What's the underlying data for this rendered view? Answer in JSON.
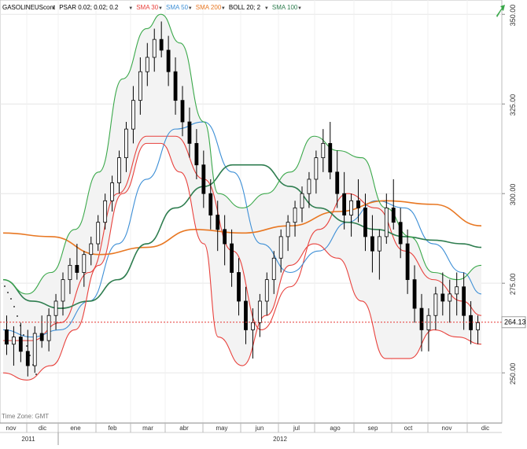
{
  "toolbar": {
    "symbol": "GASOLINEUScont",
    "indicators": [
      "PSAR 0.02; 0.02; 0.2",
      "SMA 30",
      "SMA 50",
      "SMA 200",
      "BOLL 20; 2",
      "SMA 100"
    ],
    "colors": [
      "#000000",
      "#e8413c",
      "#3d8fd6",
      "#e87722",
      "#000000",
      "#2e7d4f"
    ],
    "dropdown_glyph": "▼"
  },
  "timezone_label": "Time Zone: GMT",
  "price_label": "264.13",
  "chart_data": {
    "type": "line",
    "title": "",
    "y_axis": {
      "ylim": [
        236,
        354
      ],
      "ticks": [
        250,
        275,
        300,
        325,
        350
      ],
      "tick_labels": [
        "250.00",
        "275.00",
        "300.00",
        "325.00",
        "350.00"
      ],
      "position": "right"
    },
    "x_axis": {
      "months": [
        "nov",
        "dic",
        "ene",
        "feb",
        "mar",
        "abr",
        "may",
        "jun",
        "jul",
        "ago",
        "sep",
        "oct",
        "nov",
        "dic"
      ],
      "years": [
        "2011",
        "2012"
      ]
    },
    "last_price": 264.13,
    "grid": true,
    "candles_approx": [
      [
        262,
        266,
        255,
        258
      ],
      [
        258,
        263,
        252,
        260
      ],
      [
        260,
        264,
        253,
        256
      ],
      [
        256,
        262,
        249,
        252
      ],
      [
        252,
        263,
        250,
        261
      ],
      [
        261,
        266,
        257,
        259
      ],
      [
        259,
        268,
        256,
        266
      ],
      [
        266,
        272,
        262,
        270
      ],
      [
        270,
        278,
        266,
        276
      ],
      [
        276,
        282,
        272,
        280
      ],
      [
        280,
        286,
        276,
        278
      ],
      [
        278,
        284,
        274,
        283
      ],
      [
        283,
        288,
        280,
        286
      ],
      [
        286,
        294,
        284,
        292
      ],
      [
        292,
        300,
        290,
        298
      ],
      [
        298,
        305,
        295,
        303
      ],
      [
        303,
        312,
        300,
        310
      ],
      [
        310,
        320,
        306,
        318
      ],
      [
        318,
        330,
        314,
        326
      ],
      [
        326,
        338,
        322,
        334
      ],
      [
        334,
        342,
        330,
        338
      ],
      [
        338,
        346,
        334,
        343
      ],
      [
        343,
        348,
        338,
        340
      ],
      [
        340,
        344,
        330,
        334
      ],
      [
        334,
        338,
        322,
        326
      ],
      [
        326,
        330,
        316,
        320
      ],
      [
        320,
        324,
        310,
        314
      ],
      [
        314,
        318,
        304,
        308
      ],
      [
        308,
        312,
        296,
        300
      ],
      [
        300,
        304,
        290,
        294
      ],
      [
        294,
        298,
        284,
        290
      ],
      [
        290,
        294,
        280,
        286
      ],
      [
        286,
        290,
        274,
        278
      ],
      [
        278,
        282,
        266,
        270
      ],
      [
        270,
        274,
        258,
        262
      ],
      [
        262,
        268,
        254,
        264
      ],
      [
        264,
        272,
        260,
        270
      ],
      [
        270,
        278,
        266,
        276
      ],
      [
        276,
        284,
        272,
        282
      ],
      [
        282,
        290,
        278,
        288
      ],
      [
        288,
        294,
        284,
        292
      ],
      [
        292,
        298,
        288,
        296
      ],
      [
        296,
        302,
        292,
        300
      ],
      [
        300,
        306,
        296,
        304
      ],
      [
        304,
        312,
        300,
        310
      ],
      [
        310,
        318,
        306,
        314
      ],
      [
        314,
        320,
        304,
        306
      ],
      [
        306,
        312,
        296,
        300
      ],
      [
        300,
        306,
        290,
        294
      ],
      [
        294,
        300,
        288,
        298
      ],
      [
        298,
        304,
        292,
        296
      ],
      [
        296,
        300,
        284,
        288
      ],
      [
        288,
        294,
        278,
        284
      ],
      [
        284,
        290,
        276,
        288
      ],
      [
        288,
        300,
        286,
        296
      ],
      [
        296,
        304,
        290,
        292
      ],
      [
        292,
        296,
        282,
        286
      ],
      [
        286,
        290,
        272,
        276
      ],
      [
        276,
        280,
        264,
        268
      ],
      [
        268,
        272,
        256,
        262
      ],
      [
        262,
        268,
        256,
        266
      ],
      [
        266,
        274,
        262,
        272
      ],
      [
        272,
        278,
        266,
        270
      ],
      [
        270,
        276,
        264,
        272
      ],
      [
        272,
        278,
        266,
        274
      ],
      [
        274,
        278,
        262,
        266
      ],
      [
        266,
        270,
        258,
        262
      ],
      [
        262,
        266,
        258,
        264
      ]
    ],
    "series": [
      {
        "name": "SMA 30",
        "color": "#e8413c",
        "x": [
          0,
          0.06,
          0.12,
          0.18,
          0.24,
          0.3,
          0.36,
          0.42,
          0.48,
          0.54,
          0.6,
          0.66,
          0.72,
          0.78,
          0.84,
          0.9,
          0.96,
          1
        ],
        "values": [
          259,
          259,
          264,
          278,
          300,
          316,
          316,
          304,
          284,
          262,
          274,
          290,
          300,
          296,
          284,
          276,
          270,
          266
        ]
      },
      {
        "name": "SMA 50",
        "color": "#3d8fd6",
        "x": [
          0,
          0.06,
          0.12,
          0.18,
          0.24,
          0.3,
          0.36,
          0.42,
          0.48,
          0.54,
          0.6,
          0.66,
          0.72,
          0.78,
          0.84,
          0.9,
          0.96,
          1
        ],
        "values": [
          262,
          260,
          262,
          270,
          286,
          304,
          318,
          320,
          306,
          286,
          278,
          284,
          292,
          298,
          296,
          286,
          278,
          272
        ]
      },
      {
        "name": "SMA 200",
        "color": "#e87722",
        "x": [
          0,
          0.1,
          0.2,
          0.3,
          0.4,
          0.5,
          0.6,
          0.7,
          0.8,
          0.9,
          1
        ],
        "values": [
          289,
          288,
          283,
          285,
          290,
          289,
          291,
          295,
          298,
          297,
          291
        ]
      },
      {
        "name": "SMA 100",
        "color": "#2e7d4f",
        "x": [
          0,
          0.06,
          0.12,
          0.18,
          0.24,
          0.3,
          0.36,
          0.42,
          0.48,
          0.54,
          0.6,
          0.66,
          0.72,
          0.78,
          0.84,
          0.9,
          0.96,
          1
        ],
        "values": [
          276,
          270,
          268,
          270,
          276,
          286,
          296,
          302,
          308,
          308,
          302,
          296,
          292,
          290,
          288,
          287,
          286,
          285
        ]
      },
      {
        "name": "BOLL upper",
        "color": "#3aa84a",
        "x": [
          0,
          0.05,
          0.1,
          0.15,
          0.2,
          0.25,
          0.3,
          0.33,
          0.37,
          0.42,
          0.45,
          0.5,
          0.55,
          0.6,
          0.65,
          0.7,
          0.75,
          0.8,
          0.85,
          0.9,
          0.95,
          1
        ],
        "values": [
          276,
          272,
          278,
          290,
          306,
          332,
          346,
          350,
          342,
          320,
          300,
          296,
          300,
          306,
          316,
          312,
          310,
          296,
          288,
          278,
          276,
          280
        ]
      },
      {
        "name": "BOLL lower",
        "color": "#e8413c",
        "x": [
          0,
          0.05,
          0.1,
          0.15,
          0.2,
          0.25,
          0.3,
          0.33,
          0.37,
          0.42,
          0.45,
          0.5,
          0.55,
          0.6,
          0.65,
          0.7,
          0.75,
          0.8,
          0.85,
          0.9,
          0.95,
          1
        ],
        "values": [
          250,
          248,
          252,
          262,
          280,
          300,
          314,
          314,
          306,
          286,
          260,
          252,
          266,
          280,
          286,
          282,
          270,
          254,
          254,
          262,
          260,
          258
        ]
      }
    ]
  }
}
